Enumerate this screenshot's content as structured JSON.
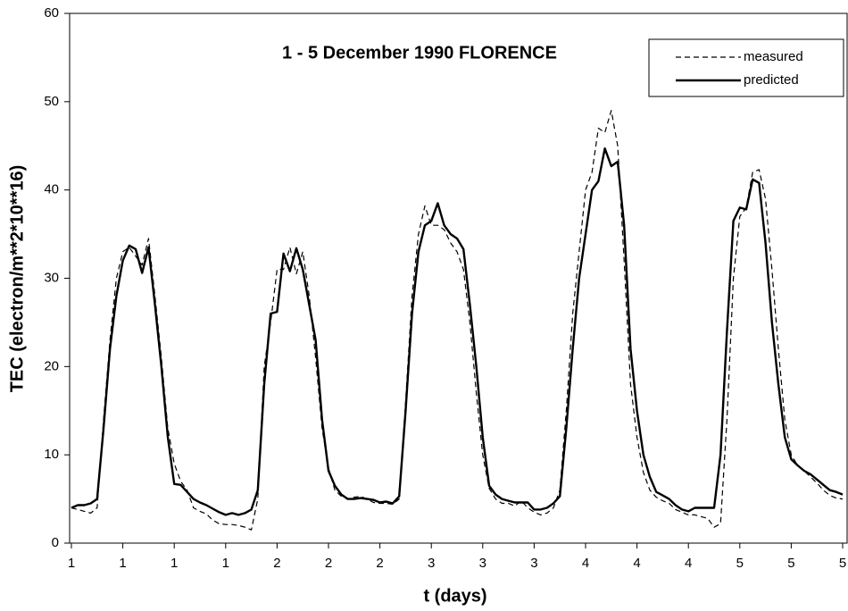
{
  "chart_data": {
    "type": "line",
    "title": "1 - 5 December 1990 FLORENCE",
    "xlabel": "t (days)",
    "ylabel": "TEC (electron/m**2*10**16)",
    "categories": [
      "1",
      null,
      null,
      null,
      null,
      null,
      null,
      null,
      "1",
      null,
      null,
      null,
      null,
      null,
      null,
      null,
      "1",
      null,
      null,
      null,
      null,
      null,
      null,
      null,
      "1",
      null,
      null,
      null,
      null,
      null,
      null,
      null,
      "2",
      null,
      null,
      null,
      null,
      null,
      null,
      null,
      "2",
      null,
      null,
      null,
      null,
      null,
      null,
      null,
      "2",
      null,
      null,
      null,
      null,
      null,
      null,
      null,
      "3",
      null,
      null,
      null,
      null,
      null,
      null,
      null,
      "3",
      null,
      null,
      null,
      null,
      null,
      null,
      null,
      "3",
      null,
      null,
      null,
      null,
      null,
      null,
      null,
      "4",
      null,
      null,
      null,
      null,
      null,
      null,
      null,
      "4",
      null,
      null,
      null,
      null,
      null,
      null,
      null,
      "4",
      null,
      null,
      null,
      null,
      null,
      null,
      null,
      "5",
      null,
      null,
      null,
      null,
      null,
      null,
      null,
      "5",
      null,
      null,
      null,
      null,
      null,
      null,
      null,
      "5"
    ],
    "series": [
      {
        "name": "measured",
        "color": "#000000",
        "linestyle": "dashed",
        "values": [
          4.0,
          3.8,
          3.6,
          3.4,
          4.0,
          14,
          23,
          30,
          33,
          33.5,
          32.5,
          31.5,
          34.5,
          28,
          21,
          13,
          9,
          7,
          6,
          4,
          3.6,
          3.3,
          2.6,
          2.2,
          2.1,
          2.1,
          2.0,
          1.8,
          1.5,
          5,
          20,
          25,
          31,
          31,
          33.5,
          30.5,
          33,
          28,
          21,
          13,
          8.5,
          6,
          5.3,
          5.0,
          5.2,
          5.3,
          5.0,
          4.6,
          4.5,
          4.5,
          4.4,
          5.0,
          16,
          28,
          35,
          38.2,
          36,
          36,
          35.5,
          34,
          33,
          31,
          25,
          17,
          10,
          6.2,
          5.0,
          4.5,
          4.5,
          4.2,
          4.8,
          4.0,
          3.5,
          3.2,
          3.4,
          4.0,
          6,
          15,
          26,
          33,
          40,
          42,
          47,
          46.5,
          49,
          45,
          32,
          18,
          12,
          8,
          6,
          5.2,
          4.8,
          4.5,
          3.8,
          3.5,
          3.2,
          3.2,
          3.0,
          2.8,
          1.8,
          2.2,
          14,
          30,
          37,
          38,
          42,
          42.3,
          39,
          31,
          22,
          14,
          10,
          8.8,
          8.2,
          7.5,
          6.8,
          6.0,
          5.4,
          5.1,
          5.0
        ]
      },
      {
        "name": "predicted",
        "color": "#000000",
        "linestyle": "solid",
        "values": [
          4.0,
          4.3,
          4.3,
          4.5,
          5.0,
          13,
          22,
          28,
          32,
          33.7,
          33.3,
          30.6,
          33.5,
          27,
          20,
          12,
          6.7,
          6.6,
          5.8,
          5.0,
          4.6,
          4.3,
          3.9,
          3.5,
          3.2,
          3.4,
          3.2,
          3.4,
          3.8,
          6,
          18,
          26,
          26.2,
          32.8,
          30.8,
          33.4,
          31,
          27,
          23,
          14,
          8.2,
          6.5,
          5.5,
          5.0,
          5.0,
          5.1,
          5.0,
          4.9,
          4.6,
          4.7,
          4.5,
          5.3,
          15,
          26,
          33,
          36,
          36.5,
          38.5,
          36,
          35,
          34.5,
          33.3,
          27,
          20,
          12,
          6.5,
          5.5,
          5.0,
          4.8,
          4.6,
          4.6,
          4.6,
          3.8,
          3.8,
          4.0,
          4.5,
          5.3,
          13,
          22,
          30,
          35,
          40,
          41,
          44.7,
          42.7,
          43.2,
          36,
          22,
          15,
          10,
          7.5,
          5.8,
          5.4,
          5.0,
          4.3,
          3.8,
          3.6,
          4.0,
          4.0,
          4.0,
          4.0,
          10,
          24,
          36.5,
          38,
          37.8,
          41.2,
          40.8,
          34,
          25,
          18,
          12,
          9.5,
          8.8,
          8.2,
          7.8,
          7.2,
          6.6,
          6.0,
          5.8,
          5.5
        ]
      }
    ],
    "ylim": [
      0,
      60
    ],
    "yticks": [
      0,
      10,
      20,
      30,
      40,
      50,
      60
    ],
    "grid": false,
    "legend": "upper right"
  }
}
